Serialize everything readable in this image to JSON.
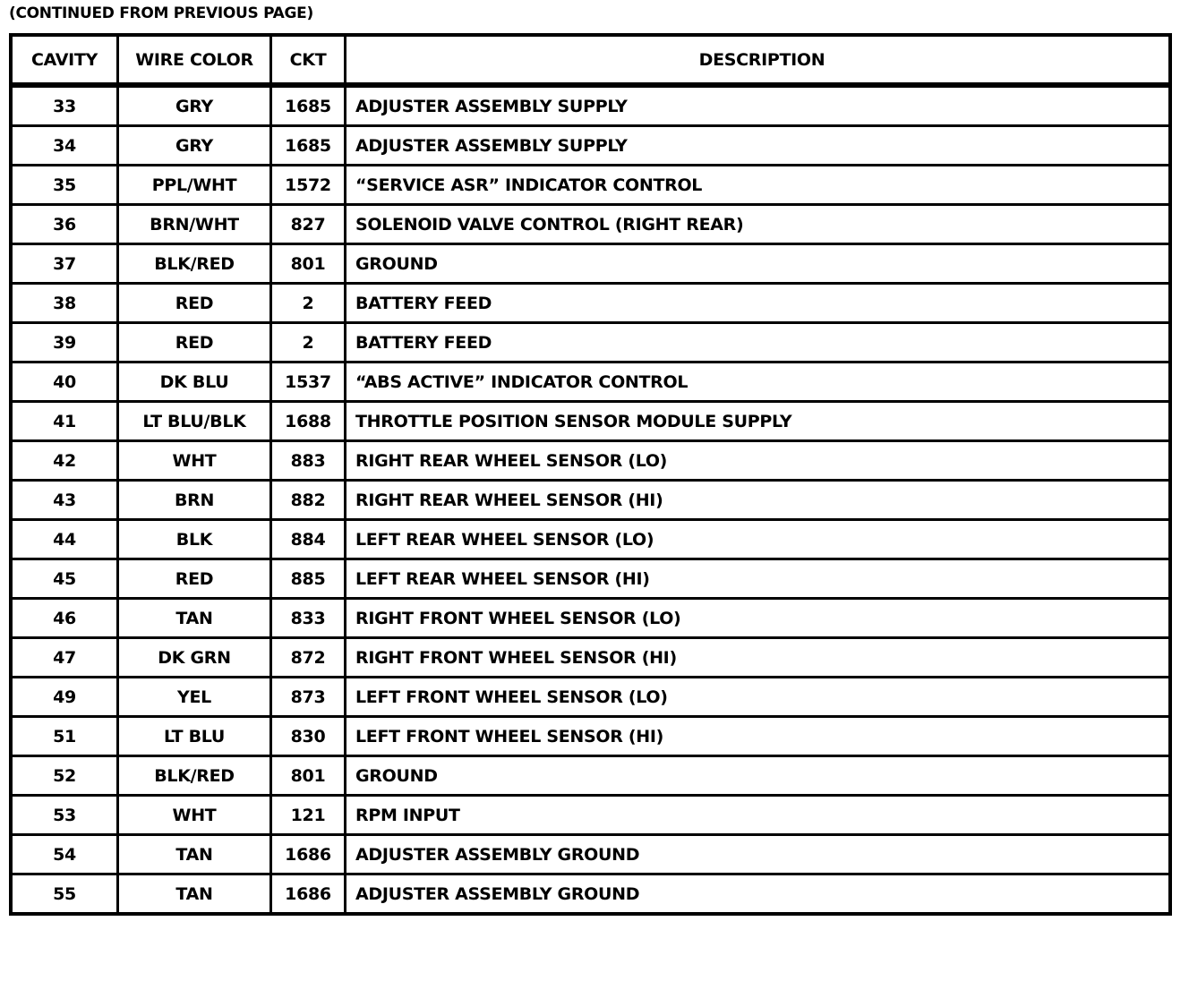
{
  "caption": "(CONTINUED FROM PREVIOUS PAGE)",
  "headers": [
    "CAVITY",
    "WIRE COLOR",
    "CKT",
    "DESCRIPTION"
  ],
  "rows": [
    [
      "33",
      "GRY",
      "1685",
      "ADJUSTER ASSEMBLY SUPPLY"
    ],
    [
      "34",
      "GRY",
      "1685",
      "ADJUSTER ASSEMBLY SUPPLY"
    ],
    [
      "35",
      "PPL/WHT",
      "1572",
      "“SERVICE ASR” INDICATOR CONTROL"
    ],
    [
      "36",
      "BRN/WHT",
      "827",
      "SOLENOID VALVE CONTROL (RIGHT REAR)"
    ],
    [
      "37",
      "BLK/RED",
      "801",
      "GROUND"
    ],
    [
      "38",
      "RED",
      "2",
      "BATTERY FEED"
    ],
    [
      "39",
      "RED",
      "2",
      "BATTERY FEED"
    ],
    [
      "40",
      "DK BLU",
      "1537",
      "“ABS ACTIVE” INDICATOR CONTROL"
    ],
    [
      "41",
      "LT BLU/BLK",
      "1688",
      "THROTTLE POSITION SENSOR MODULE SUPPLY"
    ],
    [
      "42",
      "WHT",
      "883",
      "RIGHT REAR WHEEL SENSOR (LO)"
    ],
    [
      "43",
      "BRN",
      "882",
      "RIGHT REAR WHEEL SENSOR (HI)"
    ],
    [
      "44",
      "BLK",
      "884",
      "LEFT REAR WHEEL SENSOR (LO)"
    ],
    [
      "45",
      "RED",
      "885",
      "LEFT REAR WHEEL SENSOR (HI)"
    ],
    [
      "46",
      "TAN",
      "833",
      "RIGHT FRONT WHEEL SENSOR (LO)"
    ],
    [
      "47",
      "DK GRN",
      "872",
      "RIGHT FRONT WHEEL SENSOR (HI)"
    ],
    [
      "49",
      "YEL",
      "873",
      "LEFT FRONT WHEEL SENSOR (LO)"
    ],
    [
      "51",
      "LT BLU",
      "830",
      "LEFT FRONT WHEEL SENSOR (HI)"
    ],
    [
      "52",
      "BLK/RED",
      "801",
      "GROUND"
    ],
    [
      "53",
      "WHT",
      "121",
      "RPM INPUT"
    ],
    [
      "54",
      "TAN",
      "1686",
      "ADJUSTER ASSEMBLY GROUND"
    ],
    [
      "55",
      "TAN",
      "1686",
      "ADJUSTER ASSEMBLY GROUND"
    ]
  ]
}
